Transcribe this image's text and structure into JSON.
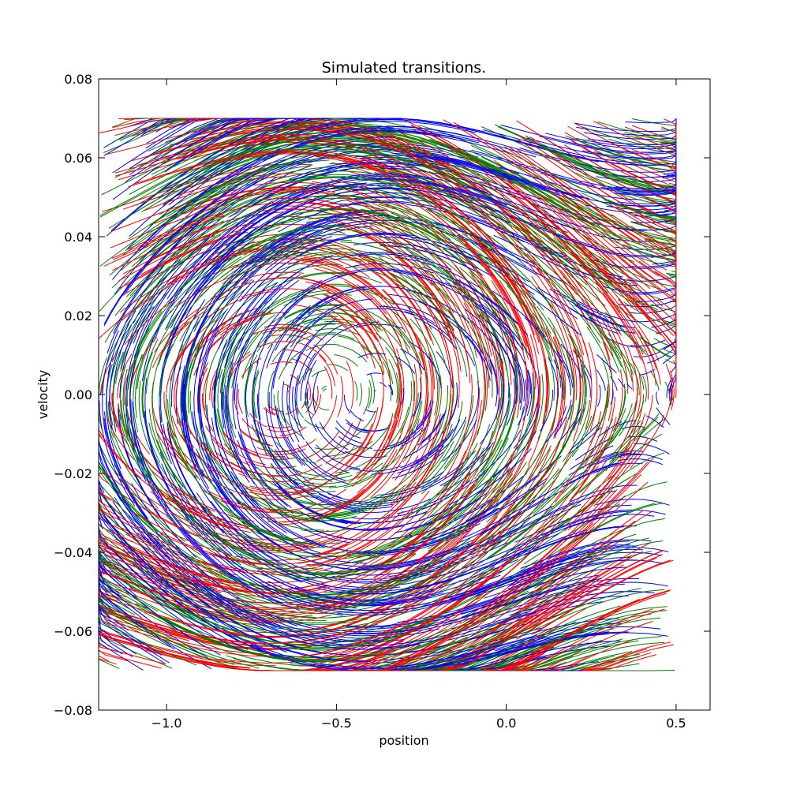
{
  "chart_data": {
    "type": "quiver",
    "title": "Simulated transitions.",
    "xlabel": "position",
    "ylabel": "velocity",
    "xlim": [
      -1.2,
      0.6
    ],
    "ylim": [
      -0.08,
      0.08
    ],
    "xticks": [
      -1.0,
      -0.5,
      0.0,
      0.5
    ],
    "xtick_labels": [
      "−1.0",
      "−0.5",
      "0.0",
      "0.5"
    ],
    "yticks": [
      -0.08,
      -0.06,
      -0.04,
      -0.02,
      0.0,
      0.02,
      0.04,
      0.06,
      0.08
    ],
    "ytick_labels": [
      "−0.08",
      "−0.06",
      "−0.04",
      "−0.02",
      "0.00",
      "0.02",
      "0.04",
      "0.06",
      "0.08"
    ],
    "grid": false,
    "state_bounds": {
      "position": [
        -1.2,
        0.5
      ],
      "velocity": [
        -0.07,
        0.07
      ]
    },
    "vortex_center": {
      "position": -0.52,
      "velocity": 0.0
    },
    "series": [
      {
        "action": 0,
        "color": "#ff0000"
      },
      {
        "action": 1,
        "color": "#008000"
      },
      {
        "action": 2,
        "color": "#0000ff"
      }
    ]
  }
}
